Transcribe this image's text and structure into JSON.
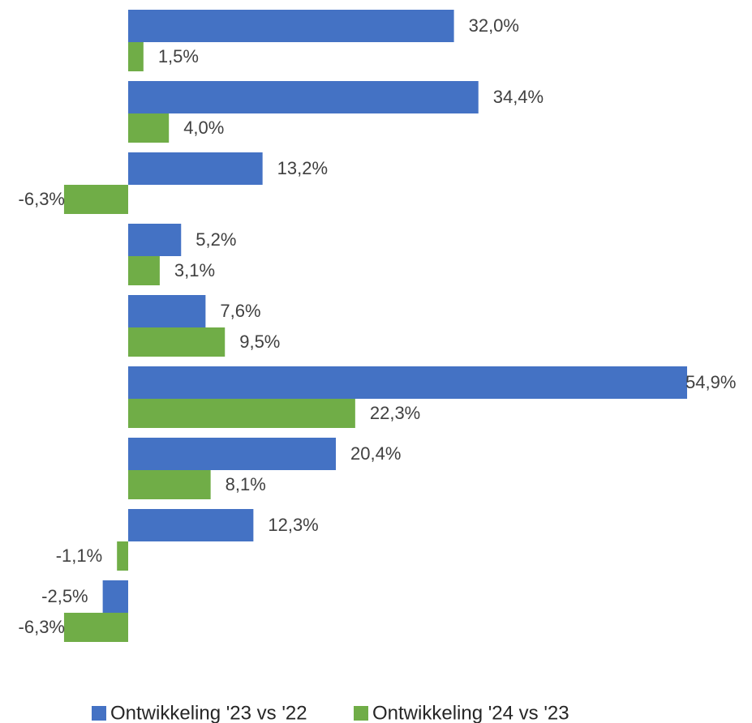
{
  "chart_data": {
    "type": "bar",
    "orientation": "horizontal",
    "categories": [
      null,
      null,
      null,
      null,
      null,
      null,
      null,
      null,
      null
    ],
    "series": [
      {
        "name": "Ontwikkeling '23 vs '22",
        "color": "#4472c4",
        "values": [
          32.0,
          34.4,
          13.2,
          5.2,
          7.6,
          54.9,
          20.4,
          12.3,
          -2.5
        ],
        "value_labels": [
          "32,0%",
          "34,4%",
          "13,2%",
          "5,2%",
          "7,6%",
          "54,9%",
          "20,4%",
          "12,3%",
          "-2,5%"
        ]
      },
      {
        "name": "Ontwikkeling '24 vs '23",
        "color": "#70ad47",
        "values": [
          1.5,
          4.0,
          -6.3,
          3.1,
          9.5,
          22.3,
          8.1,
          -1.1,
          -6.3
        ],
        "value_labels": [
          "1,5%",
          "4,0%",
          "-6,3%",
          "3,1%",
          "9,5%",
          "22,3%",
          "8,1%",
          "-1,1%",
          "-6,3%"
        ]
      }
    ],
    "legend": "bottom"
  }
}
